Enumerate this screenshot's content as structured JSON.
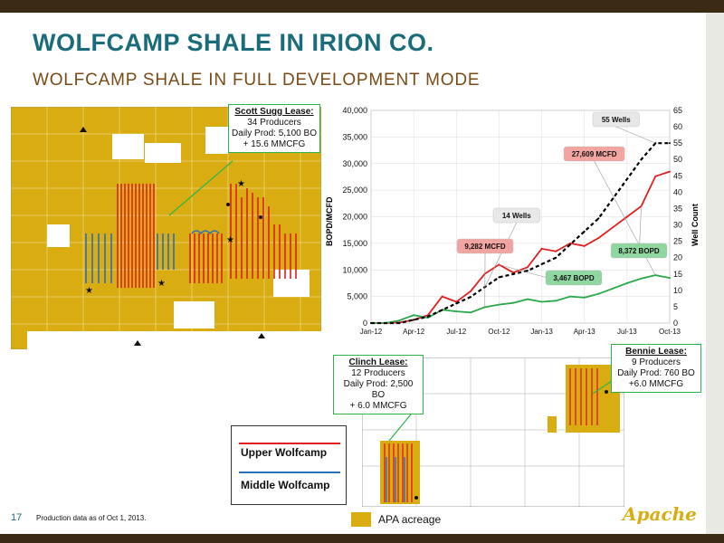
{
  "slide": {
    "title": "WOLFCAMP SHALE IN IRION CO.",
    "subtitle": "WOLFCAMP SHALE IN FULL DEVELOPMENT MODE",
    "page_number": "17",
    "footnote": "Production data as of Oct 1, 2013.",
    "logo_text": "Apache"
  },
  "callouts": {
    "scott": {
      "head": "Scott Sugg Lease:",
      "l1": "34 Producers",
      "l2": "Daily Prod: 5,100 BO",
      "l3": "+ 15.6 MMCFG"
    },
    "clinch": {
      "head": "Clinch Lease:",
      "l1": "12 Producers",
      "l2": "Daily Prod: 2,500 BO",
      "l3": "+ 6.0 MMCFG"
    },
    "bennie": {
      "head": "Bennie Lease:",
      "l1": "9 Producers",
      "l2": "Daily Prod: 760 BO",
      "l3": "+6.0 MMCFG"
    }
  },
  "legend": {
    "upper": "Upper Wolfcamp",
    "middle": "Middle Wolfcamp",
    "acreage": "APA acreage",
    "upper_color": "#e02020",
    "middle_color": "#2a6fb8",
    "acreage_color": "#d9ad12"
  },
  "chart_data": {
    "type": "line",
    "xlabel": "",
    "ylabel": "BOPD/MCFD",
    "y2label": "Well Count",
    "ylim": [
      0,
      40000
    ],
    "y2lim": [
      0,
      65
    ],
    "yticks": [
      "0",
      "5,000",
      "10,000",
      "15,000",
      "20,000",
      "25,000",
      "30,000",
      "35,000",
      "40,000"
    ],
    "y2ticks": [
      "0",
      "5",
      "10",
      "15",
      "20",
      "25",
      "30",
      "35",
      "40",
      "45",
      "50",
      "55",
      "60",
      "65"
    ],
    "xticks": [
      "Jan-12",
      "Apr-12",
      "Jul-12",
      "Oct-12",
      "Jan-13",
      "Apr-13",
      "Jul-13",
      "Oct-13"
    ],
    "series": [
      {
        "color": "#e02020",
        "axis": "left",
        "x": [
          0,
          1,
          2,
          3,
          4,
          5,
          6,
          7,
          8,
          9,
          10,
          11,
          12,
          13,
          14,
          15,
          16,
          17,
          18,
          19,
          20,
          21
        ],
        "values": [
          0,
          0,
          100,
          600,
          1500,
          5000,
          4000,
          6000,
          9282,
          11000,
          9500,
          10500,
          14000,
          13500,
          15000,
          14500,
          16000,
          18000,
          20000,
          22000,
          27609,
          28500
        ]
      },
      {
        "color": "#2aa84a",
        "axis": "left",
        "x": [
          0,
          1,
          2,
          3,
          4,
          5,
          6,
          7,
          8,
          9,
          10,
          11,
          12,
          13,
          14,
          15,
          16,
          17,
          18,
          19,
          20,
          21
        ],
        "values": [
          0,
          0,
          500,
          1500,
          1000,
          2500,
          2200,
          2000,
          3000,
          3467,
          3800,
          4500,
          4000,
          4200,
          5000,
          4800,
          5500,
          6500,
          7500,
          8372,
          9000,
          8500
        ]
      },
      {
        "color": "#000000",
        "axis": "right",
        "dashed": true,
        "x": [
          0,
          1,
          2,
          3,
          4,
          5,
          6,
          7,
          8,
          9,
          10,
          11,
          12,
          13,
          14,
          15,
          16,
          17,
          18,
          19,
          20,
          21
        ],
        "values": [
          0,
          0,
          0,
          1,
          2,
          4,
          6,
          8,
          11,
          14,
          15,
          16,
          18,
          20,
          24,
          28,
          32,
          38,
          44,
          50,
          55,
          55
        ]
      }
    ],
    "annotations": [
      {
        "text": "55 Wells",
        "style": "gray"
      },
      {
        "text": "27,609 MCFD",
        "style": "red"
      },
      {
        "text": "14 Wells",
        "style": "gray"
      },
      {
        "text": "9,282 MCFD",
        "style": "red"
      },
      {
        "text": "8,372 BOPD",
        "style": "green"
      },
      {
        "text": "3,467 BOPD",
        "style": "green"
      }
    ]
  }
}
